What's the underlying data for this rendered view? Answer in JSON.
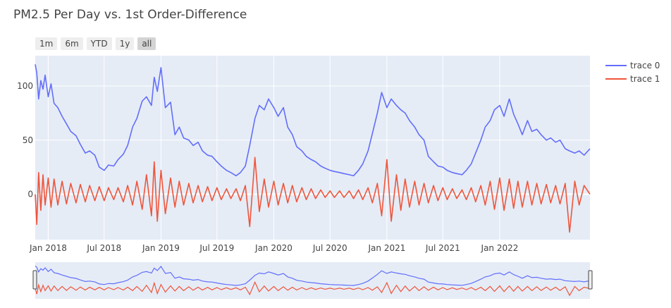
{
  "title": "PM2.5 Per Day vs. 1st Order-Difference",
  "range_buttons": [
    {
      "label": "1m",
      "active": false
    },
    {
      "label": "6m",
      "active": false
    },
    {
      "label": "YTD",
      "active": false
    },
    {
      "label": "1y",
      "active": false
    },
    {
      "label": "all",
      "active": true
    }
  ],
  "colors": {
    "plot_bg": "#e5ecf6",
    "grid": "#ffffff",
    "trace0": "#636efa",
    "trace1": "#ef553b"
  },
  "chart_data": {
    "type": "line",
    "title": "PM2.5 Per Day vs. 1st Order-Difference",
    "xlabel": "",
    "ylabel": "",
    "x_range": [
      "2017-11-20",
      "2022-10-20"
    ],
    "ylim": [
      -42,
      128
    ],
    "x_ticks": [
      {
        "date": "2018-01-01",
        "label": "Jan 2018"
      },
      {
        "date": "2018-07-01",
        "label": "Jul 2018"
      },
      {
        "date": "2019-01-01",
        "label": "Jan 2019"
      },
      {
        "date": "2019-07-01",
        "label": "Jul 2019"
      },
      {
        "date": "2020-01-01",
        "label": "Jan 2020"
      },
      {
        "date": "2020-07-01",
        "label": "Jul 2020"
      },
      {
        "date": "2021-01-01",
        "label": "Jan 2021"
      },
      {
        "date": "2021-07-01",
        "label": "Jul 2021"
      },
      {
        "date": "2022-01-01",
        "label": "Jan 2022"
      }
    ],
    "y_ticks": [
      {
        "value": 0,
        "label": "0"
      },
      {
        "value": 50,
        "label": "50"
      },
      {
        "value": 100,
        "label": "100"
      }
    ],
    "grid": true,
    "legend_position": "top-right",
    "rangeslider": true,
    "series": [
      {
        "name": "trace 0",
        "color": "#636efa",
        "x": [
          "2017-11-20",
          "2017-11-25",
          "2017-12-01",
          "2017-12-08",
          "2017-12-15",
          "2017-12-22",
          "2018-01-01",
          "2018-01-10",
          "2018-01-20",
          "2018-02-01",
          "2018-02-15",
          "2018-03-01",
          "2018-03-15",
          "2018-04-01",
          "2018-04-15",
          "2018-05-01",
          "2018-05-15",
          "2018-06-01",
          "2018-06-15",
          "2018-07-01",
          "2018-07-15",
          "2018-08-01",
          "2018-08-15",
          "2018-09-01",
          "2018-09-15",
          "2018-10-01",
          "2018-10-15",
          "2018-11-01",
          "2018-11-15",
          "2018-12-01",
          "2018-12-10",
          "2018-12-20",
          "2019-01-01",
          "2019-01-15",
          "2019-02-01",
          "2019-02-15",
          "2019-03-01",
          "2019-03-15",
          "2019-04-01",
          "2019-04-15",
          "2019-05-01",
          "2019-05-15",
          "2019-06-01",
          "2019-06-15",
          "2019-07-01",
          "2019-07-15",
          "2019-08-01",
          "2019-08-15",
          "2019-09-01",
          "2019-09-15",
          "2019-10-01",
          "2019-10-15",
          "2019-11-01",
          "2019-11-15",
          "2019-12-01",
          "2019-12-15",
          "2020-01-01",
          "2020-01-15",
          "2020-02-01",
          "2020-02-15",
          "2020-03-01",
          "2020-03-15",
          "2020-04-01",
          "2020-04-15",
          "2020-05-01",
          "2020-05-15",
          "2020-06-01",
          "2020-06-15",
          "2020-07-01",
          "2020-07-15",
          "2020-08-01",
          "2020-08-15",
          "2020-09-01",
          "2020-09-15",
          "2020-10-01",
          "2020-10-15",
          "2020-11-01",
          "2020-11-15",
          "2020-12-01",
          "2020-12-15",
          "2021-01-01",
          "2021-01-15",
          "2021-02-01",
          "2021-02-15",
          "2021-03-01",
          "2021-03-15",
          "2021-04-01",
          "2021-04-15",
          "2021-05-01",
          "2021-05-15",
          "2021-06-01",
          "2021-06-15",
          "2021-07-01",
          "2021-07-15",
          "2021-08-01",
          "2021-08-15",
          "2021-09-01",
          "2021-09-15",
          "2021-10-01",
          "2021-10-15",
          "2021-11-01",
          "2021-11-15",
          "2021-12-01",
          "2021-12-15",
          "2022-01-01",
          "2022-01-15",
          "2022-02-01",
          "2022-02-15",
          "2022-03-01",
          "2022-03-15",
          "2022-04-01",
          "2022-04-15",
          "2022-05-01",
          "2022-05-15",
          "2022-06-01",
          "2022-06-15",
          "2022-07-01",
          "2022-07-15",
          "2022-08-01",
          "2022-08-15",
          "2022-09-01",
          "2022-09-15",
          "2022-10-01",
          "2022-10-20"
        ],
        "y": [
          120,
          112,
          88,
          105,
          97,
          110,
          90,
          102,
          84,
          80,
          72,
          65,
          58,
          54,
          46,
          38,
          40,
          36,
          25,
          22,
          27,
          26,
          32,
          37,
          45,
          62,
          70,
          86,
          90,
          82,
          108,
          95,
          117,
          80,
          85,
          55,
          62,
          52,
          50,
          45,
          48,
          40,
          36,
          35,
          30,
          26,
          22,
          20,
          17,
          20,
          26,
          45,
          70,
          82,
          78,
          88,
          80,
          72,
          80,
          62,
          55,
          44,
          40,
          35,
          32,
          30,
          26,
          24,
          22,
          21,
          20,
          19,
          18,
          17,
          22,
          28,
          40,
          56,
          75,
          94,
          80,
          88,
          82,
          78,
          75,
          68,
          62,
          55,
          50,
          35,
          30,
          26,
          25,
          22,
          20,
          19,
          18,
          22,
          28,
          38,
          50,
          62,
          68,
          78,
          82,
          72,
          88,
          74,
          65,
          55,
          68,
          58,
          60,
          55,
          50,
          52,
          48,
          50,
          42,
          40,
          38,
          40,
          36,
          42
        ]
      },
      {
        "name": "trace 1",
        "color": "#ef553b",
        "x": [
          "2017-11-20",
          "2017-11-25",
          "2017-12-01",
          "2017-12-08",
          "2017-12-15",
          "2017-12-22",
          "2018-01-01",
          "2018-01-10",
          "2018-01-20",
          "2018-02-01",
          "2018-02-15",
          "2018-03-01",
          "2018-03-15",
          "2018-04-01",
          "2018-04-15",
          "2018-05-01",
          "2018-05-15",
          "2018-06-01",
          "2018-06-15",
          "2018-07-01",
          "2018-07-15",
          "2018-08-01",
          "2018-08-15",
          "2018-09-01",
          "2018-09-15",
          "2018-10-01",
          "2018-10-15",
          "2018-11-01",
          "2018-11-15",
          "2018-12-01",
          "2018-12-10",
          "2018-12-20",
          "2019-01-01",
          "2019-01-15",
          "2019-02-01",
          "2019-02-15",
          "2019-03-01",
          "2019-03-15",
          "2019-04-01",
          "2019-04-15",
          "2019-05-01",
          "2019-05-15",
          "2019-06-01",
          "2019-06-15",
          "2019-07-01",
          "2019-07-15",
          "2019-08-01",
          "2019-08-15",
          "2019-09-01",
          "2019-09-15",
          "2019-10-01",
          "2019-10-15",
          "2019-11-01",
          "2019-11-15",
          "2019-12-01",
          "2019-12-15",
          "2020-01-01",
          "2020-01-15",
          "2020-02-01",
          "2020-02-15",
          "2020-03-01",
          "2020-03-15",
          "2020-04-01",
          "2020-04-15",
          "2020-05-01",
          "2020-05-15",
          "2020-06-01",
          "2020-06-15",
          "2020-07-01",
          "2020-07-15",
          "2020-08-01",
          "2020-08-15",
          "2020-09-01",
          "2020-09-15",
          "2020-10-01",
          "2020-10-15",
          "2020-11-01",
          "2020-11-15",
          "2020-12-01",
          "2020-12-15",
          "2021-01-01",
          "2021-01-15",
          "2021-02-01",
          "2021-02-15",
          "2021-03-01",
          "2021-03-15",
          "2021-04-01",
          "2021-04-15",
          "2021-05-01",
          "2021-05-15",
          "2021-06-01",
          "2021-06-15",
          "2021-07-01",
          "2021-07-15",
          "2021-08-01",
          "2021-08-15",
          "2021-09-01",
          "2021-09-15",
          "2021-10-01",
          "2021-10-15",
          "2021-11-01",
          "2021-11-15",
          "2021-12-01",
          "2021-12-15",
          "2022-01-01",
          "2022-01-15",
          "2022-02-01",
          "2022-02-15",
          "2022-03-01",
          "2022-03-15",
          "2022-04-01",
          "2022-04-15",
          "2022-05-01",
          "2022-05-15",
          "2022-06-01",
          "2022-06-15",
          "2022-07-01",
          "2022-07-15",
          "2022-08-01",
          "2022-08-15",
          "2022-09-01",
          "2022-09-15",
          "2022-10-01",
          "2022-10-20"
        ],
        "y": [
          0,
          -28,
          20,
          -15,
          18,
          -10,
          15,
          -12,
          14,
          -10,
          12,
          -9,
          10,
          -8,
          9,
          -7,
          8,
          -6,
          7,
          -6,
          6,
          -5,
          6,
          -7,
          8,
          -10,
          12,
          -14,
          18,
          -20,
          30,
          -25,
          22,
          -18,
          15,
          -12,
          12,
          -10,
          10,
          -8,
          8,
          -7,
          7,
          -6,
          6,
          -5,
          5,
          -4,
          5,
          -6,
          8,
          -30,
          34,
          -16,
          14,
          -12,
          12,
          -10,
          10,
          -8,
          8,
          -7,
          6,
          -5,
          5,
          -4,
          4,
          -3,
          3,
          -3,
          3,
          -3,
          3,
          -4,
          4,
          -5,
          6,
          -8,
          10,
          -20,
          32,
          -25,
          18,
          -15,
          14,
          -12,
          12,
          -10,
          10,
          -8,
          8,
          -6,
          6,
          -5,
          5,
          -4,
          4,
          -5,
          6,
          -7,
          8,
          -10,
          12,
          -14,
          15,
          -15,
          14,
          -13,
          12,
          -12,
          12,
          -10,
          10,
          -9,
          9,
          -8,
          8,
          -9,
          10,
          -35,
          12,
          -10,
          8,
          0
        ]
      }
    ]
  }
}
